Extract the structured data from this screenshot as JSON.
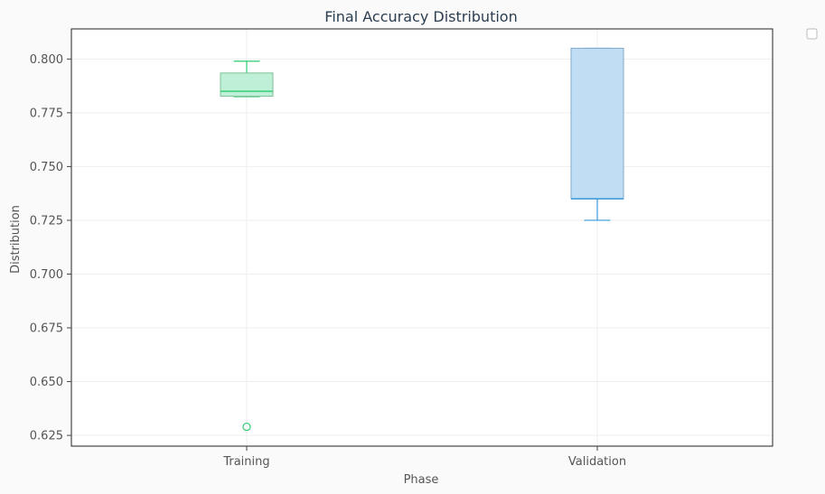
{
  "chart_data": {
    "type": "box",
    "title": "Final Accuracy Distribution",
    "xlabel": "Phase",
    "ylabel": "Distribution",
    "ylim": [
      0.62,
      0.814
    ],
    "yticks": [
      "0.625",
      "0.650",
      "0.675",
      "0.700",
      "0.725",
      "0.750",
      "0.775",
      "0.800"
    ],
    "grid": true,
    "legend": "top-right-outside (empty)",
    "categories": [
      "Training",
      "Validation"
    ],
    "boxes": [
      {
        "name": "Training",
        "whisker_low": 0.7825,
        "q1": 0.7827,
        "median": 0.785,
        "q3": 0.7935,
        "whisker_high": 0.799,
        "outliers": [
          0.629
        ],
        "fill": "#bdf0d6",
        "edge": "#7fbf9a",
        "line": "#2ecc71"
      },
      {
        "name": "Validation",
        "whisker_low": 0.725,
        "q1": 0.735,
        "median": 0.735,
        "q3": 0.805,
        "whisker_high": 0.805,
        "outliers": [],
        "fill": "#c0ddf3",
        "edge": "#7fa9cc",
        "line": "#3498db"
      }
    ]
  }
}
